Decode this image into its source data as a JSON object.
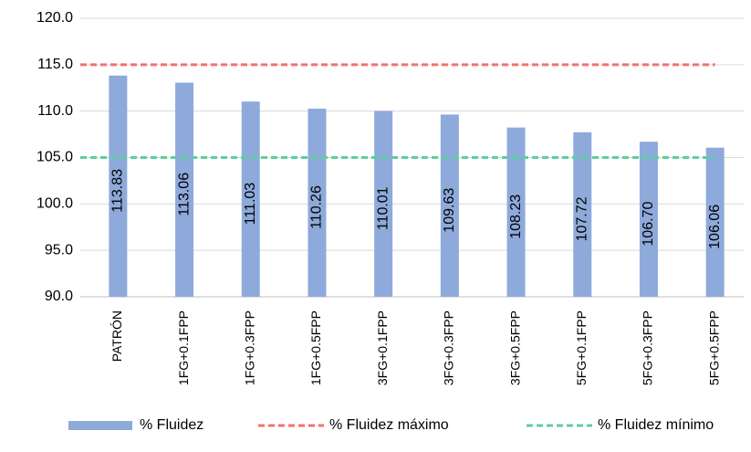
{
  "chart_data": {
    "type": "bar",
    "categories": [
      "PATRÓN",
      "1FG+0.1FPP",
      "1FG+0.3FPP",
      "1FG+0.5FPP",
      "3FG+0.1FPP",
      "3FG+0.3FPP",
      "3FG+0.5FPP",
      "5FG+0.1FPP",
      "5FG+0.3FPP",
      "5FG+0.5FPP"
    ],
    "series": [
      {
        "name": "% Fluidez",
        "type": "bar",
        "color": "#8eaadb",
        "values": [
          113.83,
          113.06,
          111.03,
          110.26,
          110.01,
          109.63,
          108.23,
          107.72,
          106.7,
          106.06
        ],
        "value_labels": [
          "113.83",
          "113.06",
          "111.03",
          "110.26",
          "110.01",
          "109.63",
          "108.23",
          "107.72",
          "106.70",
          "106.06"
        ]
      },
      {
        "name": "% Fluidez máximo",
        "type": "line",
        "dashed": true,
        "color": "#f4716b",
        "values": [
          115,
          115,
          115,
          115,
          115,
          115,
          115,
          115,
          115,
          115
        ]
      },
      {
        "name": "% Fluidez mínimo",
        "type": "line",
        "dashed": true,
        "color": "#5ccf9c",
        "values": [
          105,
          105,
          105,
          105,
          105,
          105,
          105,
          105,
          105,
          105
        ]
      }
    ],
    "ylim": [
      90,
      120
    ],
    "yticks": [
      {
        "value": 90,
        "label": "90.0"
      },
      {
        "value": 95,
        "label": "95.0"
      },
      {
        "value": 100,
        "label": "100.0"
      },
      {
        "value": 105,
        "label": "105.0"
      },
      {
        "value": 110,
        "label": "110.0"
      },
      {
        "value": 115,
        "label": "115.0"
      },
      {
        "value": 120,
        "label": "120.0"
      }
    ],
    "grid": true,
    "legend": "bottom"
  }
}
